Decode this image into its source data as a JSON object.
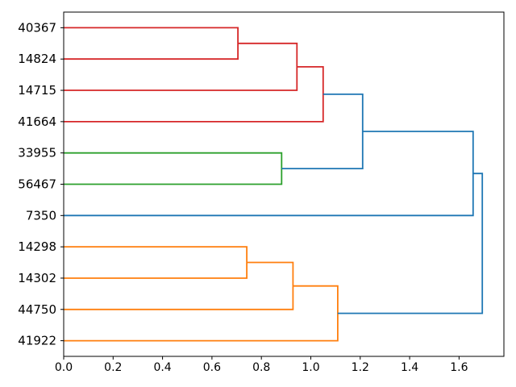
{
  "figure": {
    "background": "#ffffff",
    "kind": "hierarchical clustering dendrogram, root on right, leaves labeled on left"
  },
  "chart_data": {
    "type": "dendrogram",
    "orientation": "right",
    "title": "",
    "xlabel": "",
    "ylabel": "",
    "grid": false,
    "leaves": [
      "40367",
      "14824",
      "14715",
      "41664",
      "33955",
      "56467",
      "7350",
      "14298",
      "14302",
      "44750",
      "41922"
    ],
    "xticks": [
      0.0,
      0.2,
      0.4,
      0.6,
      0.8,
      1.0,
      1.2,
      1.4,
      1.6
    ],
    "xtick_labels": [
      "0.0",
      "0.2",
      "0.4",
      "0.6",
      "0.8",
      "1.0",
      "1.2",
      "1.4",
      "1.6"
    ],
    "xlim": [
      0,
      1.7815
    ],
    "palette": {
      "blue": "#1f77b4",
      "orange": "#ff7f0e",
      "green": "#2ca02c",
      "red": "#d62728"
    },
    "links": [
      {
        "color": "red",
        "child_x": [
          0,
          0
        ],
        "child_y": [
          0,
          1
        ],
        "merge_x": 0.705,
        "note": "40367 + 14824"
      },
      {
        "color": "red",
        "child_x": [
          0.705,
          0
        ],
        "child_y": [
          0.5,
          2
        ],
        "merge_x": 0.944,
        "note": "(40367,14824) + 14715"
      },
      {
        "color": "red",
        "child_x": [
          0.944,
          0
        ],
        "child_y": [
          1.25,
          3
        ],
        "merge_x": 1.05,
        "note": "red cluster + 41664"
      },
      {
        "color": "green",
        "child_x": [
          0,
          0
        ],
        "child_y": [
          4,
          5
        ],
        "merge_x": 0.882,
        "note": "33955 + 56467"
      },
      {
        "color": "blue",
        "child_x": [
          1.05,
          0.882
        ],
        "child_y": [
          2.125,
          4.5
        ],
        "merge_x": 1.21,
        "note": "red cluster + green cluster"
      },
      {
        "color": "orange",
        "child_x": [
          0,
          0
        ],
        "child_y": [
          7,
          8
        ],
        "merge_x": 0.741,
        "note": "14298 + 14302"
      },
      {
        "color": "orange",
        "child_x": [
          0.741,
          0
        ],
        "child_y": [
          7.5,
          9
        ],
        "merge_x": 0.928,
        "note": "(14298,14302) + 44750"
      },
      {
        "color": "orange",
        "child_x": [
          0.928,
          0
        ],
        "child_y": [
          8.25,
          10
        ],
        "merge_x": 1.109,
        "note": "orange cluster + 41922"
      },
      {
        "color": "blue",
        "child_x": [
          1.21,
          0
        ],
        "child_y": [
          3.3125,
          6
        ],
        "merge_x": 1.657,
        "note": "upper cluster + 7350"
      },
      {
        "color": "blue",
        "child_x": [
          1.657,
          1.109
        ],
        "child_y": [
          4.65625,
          9.125
        ],
        "merge_x": 1.694,
        "note": "root merge"
      }
    ]
  }
}
